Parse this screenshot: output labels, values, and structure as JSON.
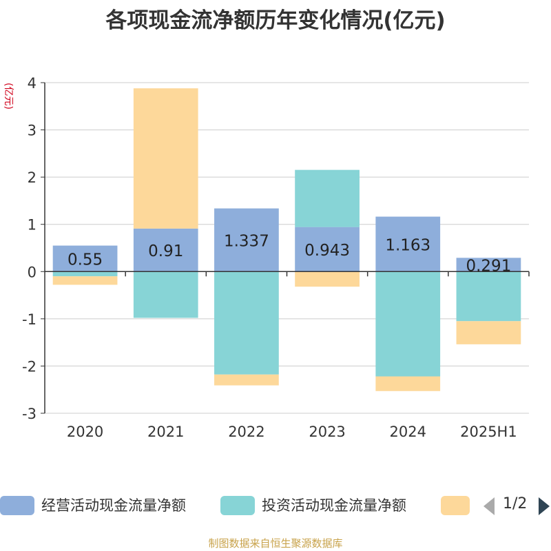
{
  "chart_data": {
    "type": "bar",
    "stacked": true,
    "title": "各项现金流净额历年变化情况(亿元)",
    "ylabel": "(亿元)",
    "ylim": [
      -3,
      4
    ],
    "yticks": [
      4,
      3,
      2,
      1,
      0,
      -1,
      -2,
      -3
    ],
    "grid": true,
    "categories": [
      "2020",
      "2021",
      "2022",
      "2023",
      "2024",
      "2025H1"
    ],
    "series": [
      {
        "name": "经营活动现金流量净额",
        "color": "#8eaedb",
        "values": [
          0.55,
          0.91,
          1.337,
          0.943,
          1.163,
          0.291
        ],
        "labels": [
          "0.55",
          "0.91",
          "1.337",
          "0.943",
          "1.163",
          "0.291"
        ]
      },
      {
        "name": "投资活动现金流量净额",
        "color": "#87d4d6",
        "values": [
          -0.1,
          -0.98,
          -2.18,
          1.21,
          -2.22,
          -1.05
        ]
      },
      {
        "name": "",
        "color": "#fdd89a",
        "values": [
          -0.18,
          2.97,
          -0.23,
          -0.32,
          -0.31,
          -0.49
        ]
      }
    ],
    "legend_position": "bottom"
  },
  "legend": {
    "page_indicator": "1/2"
  },
  "footer": {
    "source": "制图数据来自恒生聚源数据库"
  }
}
